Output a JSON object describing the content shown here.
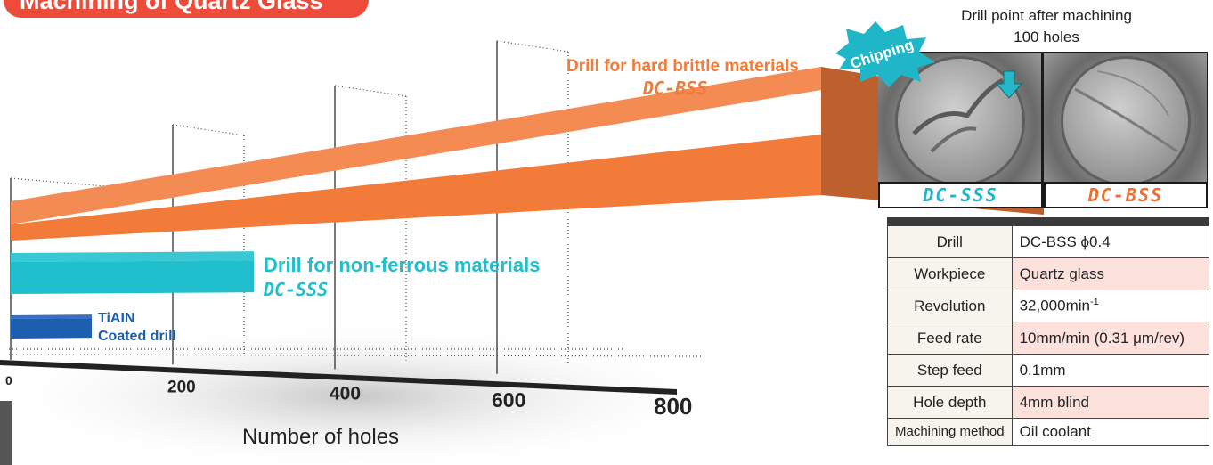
{
  "title": "Machining of Quartz Glass",
  "chart_data": {
    "type": "bar",
    "orientation": "horizontal",
    "xlabel": "Number of holes",
    "xlim": [
      0,
      800
    ],
    "xticks": [
      0,
      200,
      400,
      600,
      800
    ],
    "series": [
      {
        "name": "TiAlN Coated drill",
        "label_lines": [
          "TiAIN",
          "Coated drill"
        ],
        "value": 100,
        "color": "#1c5fae"
      },
      {
        "name": "Drill for non-ferrous materials DC-SSS",
        "label": "Drill for non-ferrous materials",
        "model": "DC-SSS",
        "value": 300,
        "color": "#1fbfce"
      },
      {
        "name": "Drill for hard brittle materials DC-BSS",
        "label": "Drill for hard brittle materials",
        "model": "DC-BSS",
        "value": 1100,
        "color": "#f27b3a"
      }
    ]
  },
  "photos": {
    "caption_line1": "Drill point after machining",
    "caption_line2": "100 holes",
    "badge": "Chipping",
    "left_label": "DC-SSS",
    "right_label": "DC-BSS"
  },
  "conditions": [
    {
      "key": "Drill",
      "value": "DC-BSS ϕ0.4",
      "highlight": false
    },
    {
      "key": "Workpiece",
      "value": "Quartz glass",
      "highlight": true
    },
    {
      "key": "Revolution",
      "value": "32,000min",
      "sup": "-1",
      "highlight": false
    },
    {
      "key": "Feed rate",
      "value": "10mm/min (0.31 μm/rev)",
      "highlight": true
    },
    {
      "key": "Step feed",
      "value": "0.1mm",
      "highlight": false
    },
    {
      "key": "Hole depth",
      "value": "4mm blind",
      "highlight": true
    },
    {
      "key": "Machining method",
      "value": "Oil coolant",
      "highlight": false
    }
  ],
  "colors": {
    "orange": "#f27b3a",
    "teal": "#1fbfce",
    "blue": "#1c5fae",
    "title_red": "#ee4b3a"
  }
}
